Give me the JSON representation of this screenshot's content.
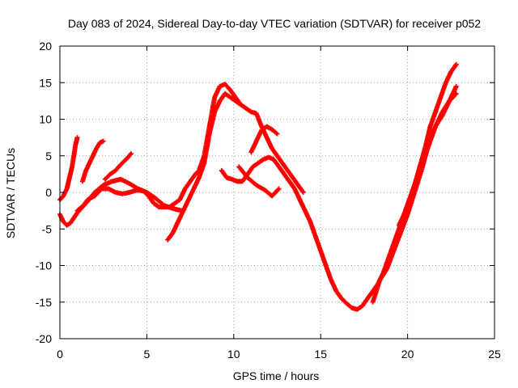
{
  "chart_data": {
    "type": "scatter",
    "title": "Day 083 of 2024, Sidereal Day-to-day VTEC variation (SDTVAR) for receiver p052",
    "xlabel": "GPS time / hours",
    "ylabel": "SDTVAR / TECUs",
    "xlim": [
      0,
      25
    ],
    "ylim": [
      -20,
      20
    ],
    "xticks": [
      "0",
      "5",
      "10",
      "15",
      "20",
      "25"
    ],
    "yticks": [
      "-20",
      "-15",
      "-10",
      "-5",
      "0",
      "5",
      "10",
      "15",
      "20"
    ],
    "grid": true,
    "marker": "plus",
    "series_color": "#ff0000",
    "series": [
      {
        "x": [
          0.0,
          0.2,
          0.4,
          0.6,
          0.8,
          1.0,
          1.3,
          1.6,
          2.0,
          2.4,
          2.8,
          3.2,
          3.6,
          4.0,
          4.4,
          4.8,
          5.1,
          5.4,
          5.7,
          6.0,
          6.3,
          6.6,
          6.9,
          7.2,
          7.5,
          7.8,
          8.0,
          8.3,
          8.6,
          8.9,
          9.2,
          9.5,
          9.8,
          10.1,
          10.4
        ],
        "y": [
          -3.0,
          -4.0,
          -4.5,
          -4.2,
          -3.5,
          -2.8,
          -2.0,
          -1.0,
          -0.5,
          0.5,
          0.5,
          0.0,
          -0.2,
          0.0,
          0.3,
          0.2,
          -0.5,
          -1.5,
          -2.0,
          -2.0,
          -2.0,
          -1.5,
          -1.0,
          0.5,
          1.5,
          2.5,
          3.0,
          5.0,
          9.0,
          13.0,
          14.5,
          14.8,
          14.0,
          13.0,
          12.0
        ]
      },
      {
        "x": [
          0.0,
          0.2,
          0.4,
          0.5,
          0.6,
          0.7,
          0.8,
          0.9,
          1.0
        ],
        "y": [
          -1.0,
          -0.5,
          0.5,
          1.5,
          2.5,
          3.5,
          5.0,
          6.5,
          7.5
        ]
      },
      {
        "x": [
          1.3,
          1.5,
          1.7,
          1.9,
          2.1,
          2.3,
          2.5
        ],
        "y": [
          1.5,
          3.0,
          4.0,
          5.0,
          6.0,
          6.8,
          7.0
        ]
      },
      {
        "x": [
          2.6,
          2.9,
          3.2,
          3.5,
          3.8,
          4.1
        ],
        "y": [
          1.8,
          2.5,
          3.0,
          3.8,
          4.5,
          5.3
        ]
      },
      {
        "x": [
          1.0,
          1.5,
          2.0,
          2.5,
          3.0,
          3.5,
          4.0,
          4.5,
          5.0,
          5.5,
          6.0,
          6.5,
          7.0
        ],
        "y": [
          -2.5,
          -1.5,
          0.0,
          1.0,
          1.5,
          1.8,
          1.2,
          0.5,
          0.0,
          -0.8,
          -1.8,
          -2.2,
          -2.5
        ]
      },
      {
        "x": [
          6.2,
          6.5,
          6.8,
          7.1,
          7.4,
          7.7,
          8.0,
          8.3,
          8.6,
          8.9,
          9.2,
          9.5,
          9.8,
          10.1,
          10.4,
          10.7,
          11.0,
          11.3,
          11.6,
          11.9,
          12.2,
          12.5,
          12.8,
          13.1,
          13.4,
          13.7,
          14.0
        ],
        "y": [
          -6.5,
          -5.5,
          -4.0,
          -2.5,
          -1.0,
          0.5,
          2.0,
          4.0,
          8.0,
          11.0,
          12.5,
          13.5,
          13.0,
          12.5,
          12.0,
          11.5,
          11.0,
          10.8,
          9.0,
          7.5,
          6.0,
          5.0,
          4.0,
          3.0,
          2.0,
          1.0,
          0.0
        ]
      },
      {
        "x": [
          9.3,
          9.6,
          9.9,
          10.2,
          10.5,
          10.8,
          11.1,
          11.4,
          11.7,
          12.0,
          12.3,
          12.6,
          12.9,
          13.2,
          13.5,
          13.8,
          14.1,
          14.4,
          14.7,
          15.0,
          15.3,
          15.6,
          15.9,
          16.2,
          16.5,
          16.8,
          17.1,
          17.4,
          17.7,
          18.0,
          18.3,
          18.6,
          18.9,
          19.2,
          19.5,
          19.8,
          20.1,
          20.4,
          20.7,
          21.0,
          21.3,
          21.6,
          21.9,
          22.2,
          22.5,
          22.8
        ],
        "y": [
          3.0,
          2.0,
          1.8,
          1.5,
          1.5,
          2.5,
          3.5,
          4.0,
          4.5,
          4.8,
          4.5,
          3.5,
          2.5,
          1.5,
          0.5,
          -1.0,
          -2.5,
          -4.0,
          -6.0,
          -8.0,
          -10.0,
          -12.0,
          -13.5,
          -14.5,
          -15.2,
          -15.8,
          -16.0,
          -15.5,
          -14.5,
          -13.5,
          -12.5,
          -11.0,
          -9.0,
          -7.0,
          -5.0,
          -3.0,
          -1.0,
          1.0,
          3.5,
          6.0,
          9.0,
          11.0,
          13.0,
          15.0,
          16.5,
          17.5
        ]
      },
      {
        "x": [
          10.3,
          10.8,
          11.3,
          11.8,
          12.2,
          12.6
        ],
        "y": [
          3.5,
          2.0,
          1.0,
          0.3,
          -0.5,
          0.5
        ]
      },
      {
        "x": [
          11.0,
          11.3,
          11.6,
          11.9,
          12.2,
          12.5
        ],
        "y": [
          5.5,
          7.0,
          8.5,
          9.0,
          8.6,
          8.0
        ]
      },
      {
        "x": [
          18.0,
          18.4,
          18.8,
          19.2,
          19.6,
          20.0,
          20.4,
          20.8,
          21.2,
          21.6,
          22.0,
          22.4,
          22.8
        ],
        "y": [
          -15.0,
          -12.0,
          -10.5,
          -8.0,
          -5.5,
          -3.0,
          0.0,
          3.0,
          6.5,
          9.0,
          10.5,
          12.5,
          14.5
        ]
      },
      {
        "x": [
          19.5,
          19.8,
          20.1,
          20.4,
          20.7,
          21.0,
          21.3,
          21.6,
          22.0,
          22.4,
          22.8
        ],
        "y": [
          -4.5,
          -3.0,
          -1.0,
          1.0,
          3.0,
          5.0,
          7.0,
          9.0,
          11.0,
          12.5,
          13.5
        ]
      }
    ]
  }
}
